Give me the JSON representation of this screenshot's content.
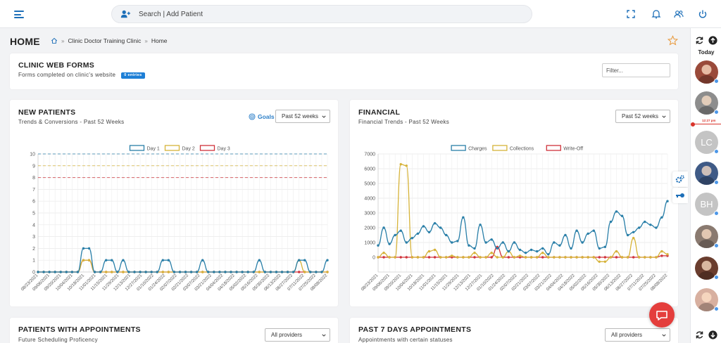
{
  "search": {
    "placeholder": "Search | Add Patient"
  },
  "page": {
    "title": "HOME",
    "breadcrumb": [
      "Clinic Doctor Training Clinic",
      "Home"
    ]
  },
  "web_forms": {
    "title": "CLINIC WEB FORMS",
    "subtitle": "Forms completed on clinic's website",
    "badge": "0 entries",
    "filter_placeholder": "Filter..."
  },
  "new_patients": {
    "title": "NEW PATIENTS",
    "subtitle": "Trends & Conversions - Past 52 Weeks",
    "goals_label": "Goals",
    "range": "Past 52 weeks"
  },
  "financial": {
    "title": "FINANCIAL",
    "subtitle": "Financial Trends - Past 52 Weeks",
    "range": "Past 52 weeks"
  },
  "appointments": {
    "title": "PATIENTS WITH APPOINTMENTS",
    "subtitle": "Future Scheduling Proficency",
    "provider": "All providers"
  },
  "past7": {
    "title": "PAST 7 DAYS APPOINTMENTS",
    "subtitle": "Appointments with certain statuses",
    "provider": "All providers"
  },
  "sidebar": {
    "today_label": "Today",
    "current_time": "12:27 pm",
    "avatars": [
      {
        "initials": "",
        "color": "#9a4a3a"
      },
      {
        "initials": "",
        "color": "#8d8d8d"
      },
      {
        "initials": "LC",
        "color": "#c4c4c4"
      },
      {
        "initials": "",
        "color": "#3f5a86"
      },
      {
        "initials": "BH",
        "color": "#c4c4c4"
      },
      {
        "initials": "",
        "color": "#8a7a70"
      },
      {
        "initials": "",
        "color": "#6a3d2e"
      },
      {
        "initials": "",
        "color": "#d8b0a0"
      }
    ]
  },
  "colors": {
    "accent": "#1d6fb8",
    "day1": "#2a7fa8",
    "day2": "#d6b33a",
    "day3": "#d0333b",
    "charges": "#2a7fa8",
    "collections": "#d6b33a",
    "writeoff": "#d0333b"
  },
  "chart_data": [
    {
      "type": "line",
      "legend_position": "top",
      "ylim": [
        0,
        10
      ],
      "yticks": [
        0,
        1,
        2,
        3,
        4,
        5,
        6,
        7,
        8,
        9,
        10
      ],
      "x_ticklabels": [
        "08/23/2021",
        "09/06/2021",
        "09/20/2021",
        "10/04/2021",
        "10/18/2021",
        "11/01/2021",
        "11/15/2021",
        "11/29/2021",
        "12/13/2021",
        "12/27/2021",
        "01/10/2022",
        "01/24/2022",
        "02/07/2022",
        "02/21/2022",
        "03/07/2022",
        "03/21/2022",
        "04/04/2022",
        "04/18/2022",
        "05/02/2022",
        "05/16/2022",
        "05/30/2022",
        "06/13/2022",
        "06/27/2022",
        "07/11/2022",
        "07/25/2022",
        "08/08/2022"
      ],
      "goal_lines": [
        {
          "series": "Day 1",
          "value": 10
        },
        {
          "series": "Day 2",
          "value": 9
        },
        {
          "series": "Day 3",
          "value": 8
        }
      ],
      "series": [
        {
          "name": "Day 1",
          "values": [
            0,
            0,
            0,
            0,
            0,
            0,
            0,
            0,
            2,
            2,
            0,
            0,
            1,
            1,
            0,
            1,
            0,
            0,
            0,
            0,
            0,
            0,
            1,
            1,
            0,
            0,
            0,
            0,
            0,
            1,
            0,
            0,
            0,
            0,
            0,
            0,
            0,
            0,
            0,
            1,
            0,
            0,
            0,
            0,
            0,
            0,
            1,
            1,
            0,
            0,
            0,
            1
          ]
        },
        {
          "name": "Day 2",
          "values": [
            0,
            0,
            0,
            0,
            0,
            0,
            0,
            0,
            1,
            1,
            0,
            0,
            0,
            0,
            0,
            0,
            0,
            0,
            0,
            0,
            0,
            0,
            0,
            0,
            0,
            0,
            0,
            0,
            0,
            0,
            0,
            0,
            0,
            0,
            0,
            0,
            0,
            0,
            0,
            0,
            0,
            0,
            0,
            0,
            0,
            0,
            1,
            0,
            0,
            0,
            0,
            0
          ]
        },
        {
          "name": "Day 3",
          "values": [
            0,
            0,
            0,
            0,
            0,
            0,
            0,
            0,
            1,
            1,
            0,
            0,
            0,
            0,
            0,
            0,
            0,
            0,
            0,
            0,
            0,
            0,
            0,
            0,
            0,
            0,
            0,
            0,
            0,
            0,
            0,
            0,
            0,
            0,
            0,
            0,
            0,
            0,
            0,
            0,
            0,
            0,
            0,
            0,
            0,
            0,
            0,
            0,
            0,
            0,
            0,
            0
          ]
        }
      ]
    },
    {
      "type": "line",
      "legend_position": "top",
      "ylim": [
        -1000,
        7000
      ],
      "yticks": [
        0,
        1000,
        2000,
        3000,
        4000,
        5000,
        6000,
        7000
      ],
      "x_ticklabels": [
        "08/23/2021",
        "09/06/2021",
        "09/20/2021",
        "10/04/2021",
        "10/18/2021",
        "11/01/2021",
        "11/15/2021",
        "11/29/2021",
        "12/13/2021",
        "12/27/2021",
        "01/10/2022",
        "01/24/2022",
        "02/07/2022",
        "02/21/2022",
        "03/07/2022",
        "03/21/2022",
        "04/04/2022",
        "04/18/2022",
        "05/02/2022",
        "05/16/2022",
        "05/30/2022",
        "06/13/2022",
        "06/27/2022",
        "07/11/2022",
        "07/25/2022",
        "08/08/2022"
      ],
      "series": [
        {
          "name": "Charges",
          "values": [
            800,
            2000,
            900,
            1500,
            1800,
            1000,
            1300,
            1600,
            2100,
            1700,
            2300,
            2000,
            1500,
            1000,
            1100,
            2700,
            800,
            600,
            2200,
            1000,
            1200,
            600,
            1000,
            400,
            1000,
            500,
            300,
            500,
            400,
            600,
            200,
            1000,
            800,
            1500,
            600,
            1800,
            1000,
            1600,
            1800,
            600,
            700,
            2400,
            3100,
            2800,
            1500,
            1700,
            2000,
            2400,
            2200,
            2000,
            2700,
            3800
          ]
        },
        {
          "name": "Collections",
          "values": [
            0,
            300,
            0,
            0,
            6300,
            6200,
            0,
            0,
            0,
            400,
            500,
            0,
            0,
            100,
            0,
            0,
            0,
            300,
            0,
            0,
            300,
            0,
            0,
            400,
            0,
            100,
            0,
            0,
            0,
            300,
            0,
            0,
            0,
            0,
            0,
            0,
            0,
            0,
            0,
            -300,
            -300,
            0,
            400,
            0,
            0,
            1300,
            0,
            0,
            0,
            0,
            400,
            200
          ]
        },
        {
          "name": "Write-Off",
          "values": [
            0,
            0,
            0,
            0,
            0,
            0,
            0,
            0,
            0,
            0,
            0,
            0,
            0,
            0,
            0,
            0,
            0,
            0,
            0,
            0,
            0,
            700,
            0,
            0,
            0,
            0,
            0,
            0,
            0,
            0,
            0,
            0,
            0,
            0,
            0,
            0,
            0,
            0,
            0,
            0,
            0,
            0,
            0,
            0,
            0,
            0,
            0,
            0,
            0,
            0,
            100,
            100
          ]
        }
      ]
    }
  ]
}
